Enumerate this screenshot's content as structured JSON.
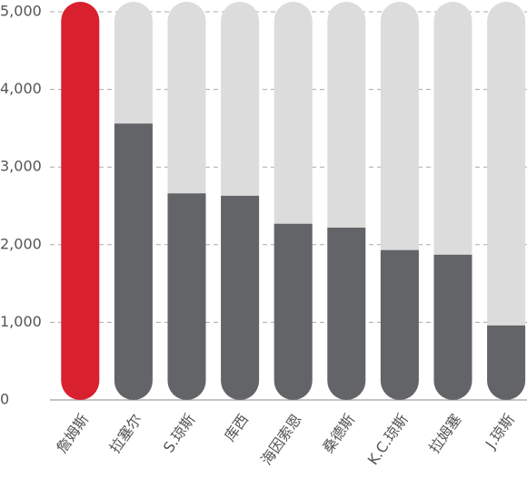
{
  "chart_data": {
    "type": "bar",
    "categories": [
      "詹姆斯",
      "拉塞尔",
      "S.琼斯",
      "库西",
      "海因索恩",
      "桑德斯",
      "K.C.琼斯",
      "拉姆塞",
      "J.琼斯"
    ],
    "values": [
      5000,
      3560,
      2660,
      2630,
      2270,
      2220,
      1930,
      1870,
      960
    ],
    "colors": [
      "#d9202f",
      "#636467",
      "#636467",
      "#636467",
      "#636467",
      "#636467",
      "#636467",
      "#636467",
      "#636467"
    ],
    "track_color": "#dcdcdc",
    "ylim": [
      0,
      5000
    ],
    "yticks": [
      0,
      {
        "value": 1000,
        "label": "1,000"
      },
      {
        "value": 2000,
        "label": "2,000"
      },
      {
        "value": 3000,
        "label": "3,000"
      },
      {
        "value": 4000,
        "label": "4,000"
      },
      {
        "value": 5000,
        "label": "5,000"
      }
    ],
    "grid": true
  }
}
